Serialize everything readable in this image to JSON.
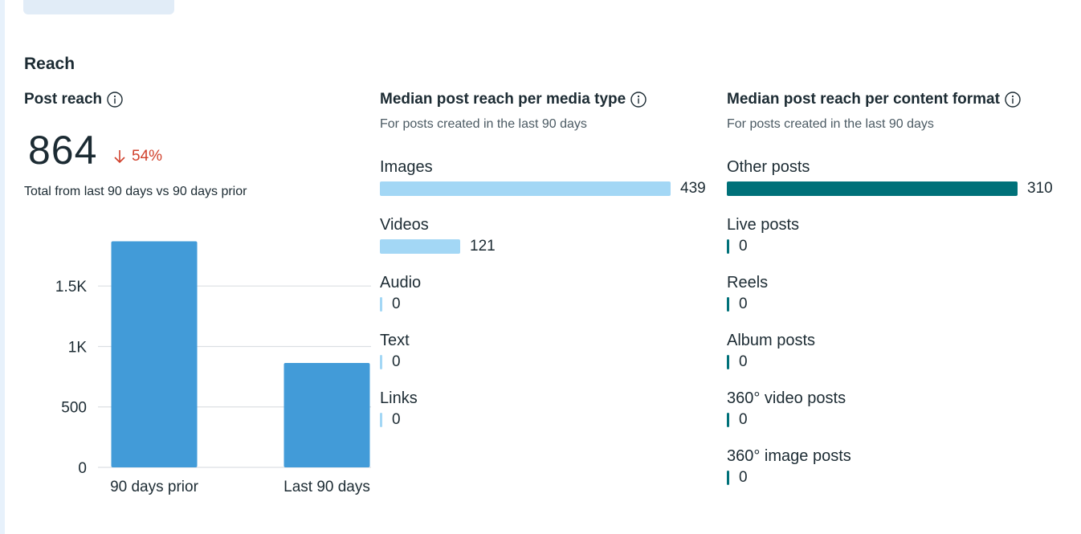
{
  "section": {
    "title": "Reach"
  },
  "post_reach": {
    "title": "Post reach",
    "value": "864",
    "change": "54%",
    "note": "Total from last 90 days vs 90 days prior"
  },
  "media_type": {
    "title": "Median post reach per media type",
    "subtitle": "For posts created in the last 90 days",
    "color": "#a3d7f5",
    "items": [
      {
        "label": "Images",
        "value": 439
      },
      {
        "label": "Videos",
        "value": 121
      },
      {
        "label": "Audio",
        "value": 0
      },
      {
        "label": "Text",
        "value": 0
      },
      {
        "label": "Links",
        "value": 0
      }
    ]
  },
  "content_format": {
    "title": "Median post reach per content format",
    "subtitle": "For posts created in the last 90 days",
    "color": "#007179",
    "items": [
      {
        "label": "Other posts",
        "value": 310
      },
      {
        "label": "Live posts",
        "value": 0
      },
      {
        "label": "Reels",
        "value": 0
      },
      {
        "label": "Album posts",
        "value": 0
      },
      {
        "label": "360° video posts",
        "value": 0
      },
      {
        "label": "360° image posts",
        "value": 0
      }
    ]
  },
  "chart_data": {
    "type": "bar",
    "categories": [
      "90 days prior",
      "Last 90 days"
    ],
    "values": [
      1870,
      864
    ],
    "ylim": [
      0,
      1900
    ],
    "yticks": [
      0,
      500,
      1000,
      1500
    ],
    "ytick_labels": [
      "0",
      "500",
      "1K",
      "1.5K"
    ],
    "grid": true,
    "color": "#429bd8"
  }
}
